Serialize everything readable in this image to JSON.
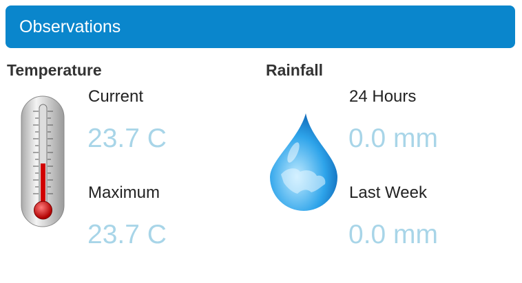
{
  "header": {
    "title": "Observations"
  },
  "sections": [
    {
      "heading": "Temperature",
      "items": [
        {
          "label": "Current",
          "value": "23.7 C"
        },
        {
          "label": "Maximum",
          "value": "23.7 C"
        }
      ]
    },
    {
      "heading": "Rainfall",
      "items": [
        {
          "label": "24 Hours",
          "value": "0.0 mm"
        },
        {
          "label": "Last Week",
          "value": "0.0 mm"
        }
      ]
    }
  ]
}
